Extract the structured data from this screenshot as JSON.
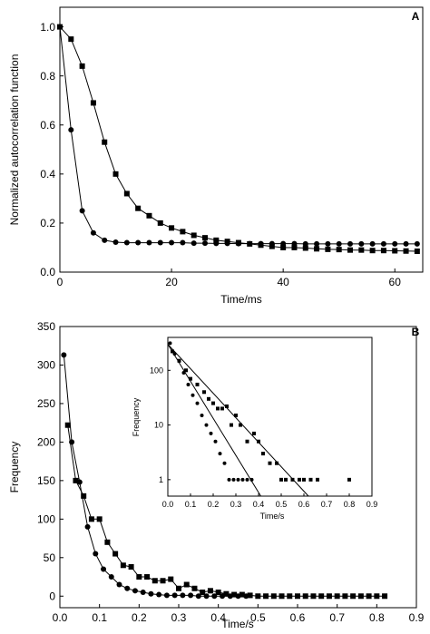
{
  "chart_data": [
    {
      "panel": "A",
      "type": "line",
      "xlabel": "Time/ms",
      "ylabel": "Normalized autocorrelation function",
      "xlim": [
        0,
        65
      ],
      "ylim": [
        0,
        1.08
      ],
      "xticks": [
        0,
        20,
        40,
        60
      ],
      "yticks": [
        0.0,
        0.2,
        0.4,
        0.6,
        0.8,
        1.0
      ],
      "xtick_labels": [
        "0",
        "20",
        "40",
        "60"
      ],
      "ytick_labels": [
        "0.0",
        "0.2",
        "0.4",
        "0.6",
        "0.8",
        "1.0"
      ],
      "grid": false,
      "series": [
        {
          "marker": "square",
          "x": [
            0,
            2,
            4,
            6,
            8,
            10,
            12,
            14,
            16,
            18,
            20,
            22,
            24,
            26,
            28,
            30,
            32,
            34,
            36,
            38,
            40,
            42,
            44,
            46,
            48,
            50,
            52,
            54,
            56,
            58,
            60,
            62,
            64
          ],
          "y": [
            1.0,
            0.95,
            0.84,
            0.69,
            0.53,
            0.4,
            0.32,
            0.26,
            0.23,
            0.2,
            0.18,
            0.165,
            0.15,
            0.14,
            0.13,
            0.125,
            0.12,
            0.115,
            0.11,
            0.105,
            0.1,
            0.1,
            0.098,
            0.095,
            0.093,
            0.092,
            0.09,
            0.09,
            0.088,
            0.088,
            0.087,
            0.086,
            0.085
          ]
        },
        {
          "marker": "circle",
          "x": [
            0,
            2,
            4,
            6,
            8,
            10,
            12,
            14,
            16,
            18,
            20,
            22,
            24,
            26,
            28,
            30,
            32,
            34,
            36,
            38,
            40,
            42,
            44,
            46,
            48,
            50,
            52,
            54,
            56,
            58,
            60,
            62,
            64
          ],
          "y": [
            1.0,
            0.58,
            0.25,
            0.16,
            0.13,
            0.122,
            0.12,
            0.12,
            0.12,
            0.12,
            0.12,
            0.12,
            0.118,
            0.118,
            0.117,
            0.117,
            0.116,
            0.116,
            0.116,
            0.116,
            0.116,
            0.116,
            0.115,
            0.115,
            0.115,
            0.115,
            0.115,
            0.115,
            0.115,
            0.115,
            0.115,
            0.115,
            0.115
          ]
        }
      ]
    },
    {
      "panel": "B",
      "type": "scatter",
      "xlabel": "Time/s",
      "ylabel": "Frequency",
      "xlim": [
        0,
        0.9
      ],
      "ylim": [
        -15,
        350
      ],
      "xticks": [
        0.0,
        0.1,
        0.2,
        0.3,
        0.4,
        0.5,
        0.6,
        0.7,
        0.8,
        0.9
      ],
      "yticks": [
        0,
        50,
        100,
        150,
        200,
        250,
        300,
        350
      ],
      "xtick_labels": [
        "0.0",
        "0.1",
        "0.2",
        "0.3",
        "0.4",
        "0.5",
        "0.6",
        "0.7",
        "0.8",
        "0.9"
      ],
      "ytick_labels": [
        "0",
        "50",
        "100",
        "150",
        "200",
        "250",
        "300",
        "350"
      ],
      "grid": false,
      "series": [
        {
          "marker": "square",
          "x": [
            0.02,
            0.04,
            0.06,
            0.08,
            0.1,
            0.12,
            0.14,
            0.16,
            0.18,
            0.2,
            0.22,
            0.24,
            0.26,
            0.28,
            0.3,
            0.32,
            0.34,
            0.36,
            0.38,
            0.4,
            0.42,
            0.44,
            0.46,
            0.48,
            0.5,
            0.52,
            0.54,
            0.56,
            0.58,
            0.6,
            0.62,
            0.64,
            0.66,
            0.68,
            0.7,
            0.72,
            0.74,
            0.76,
            0.78,
            0.8,
            0.82
          ],
          "y": [
            222,
            150,
            130,
            100,
            100,
            70,
            55,
            40,
            38,
            25,
            25,
            20,
            20,
            22,
            10,
            15,
            10,
            5,
            7,
            5,
            3,
            2,
            2,
            1,
            0,
            0,
            0,
            0,
            0,
            0,
            0,
            0,
            0,
            0,
            0,
            0,
            0,
            0,
            0,
            0,
            0
          ]
        },
        {
          "marker": "circle",
          "x": [
            0.01,
            0.03,
            0.05,
            0.07,
            0.09,
            0.11,
            0.13,
            0.15,
            0.17,
            0.19,
            0.21,
            0.23,
            0.25,
            0.27,
            0.29,
            0.31,
            0.33,
            0.35,
            0.37,
            0.39,
            0.41,
            0.43,
            0.45,
            0.47
          ],
          "y": [
            313,
            200,
            148,
            90,
            55,
            35,
            25,
            15,
            10,
            7,
            5,
            3,
            2,
            1,
            1,
            1,
            1,
            0,
            0,
            0,
            0,
            0,
            0,
            0
          ]
        }
      ],
      "inset": {
        "type": "scatter",
        "yscale": "log",
        "xlabel": "Time/s",
        "ylabel": "Frequency",
        "xlim": [
          0,
          0.9
        ],
        "ylim": [
          0.5,
          400
        ],
        "xticks": [
          0.0,
          0.1,
          0.2,
          0.3,
          0.4,
          0.5,
          0.6,
          0.7,
          0.8,
          0.9
        ],
        "xtick_labels": [
          "0.0",
          "0.1",
          "0.2",
          "0.3",
          "0.4",
          "0.5",
          "0.6",
          "0.7",
          "0.8",
          "0.9"
        ],
        "yticks": [
          1,
          10,
          100
        ],
        "ytick_labels": [
          "1",
          "10",
          "100"
        ],
        "fit_lines": [
          {
            "x": [
              0,
              0.62
            ],
            "y": [
              300,
              0.5
            ]
          },
          {
            "x": [
              0,
              0.41
            ],
            "y": [
              300,
              0.5
            ]
          }
        ],
        "series": [
          {
            "marker": "square",
            "x": [
              0.02,
              0.05,
              0.08,
              0.1,
              0.13,
              0.16,
              0.18,
              0.2,
              0.22,
              0.24,
              0.26,
              0.28,
              0.3,
              0.32,
              0.35,
              0.38,
              0.4,
              0.42,
              0.45,
              0.48,
              0.5,
              0.52,
              0.55,
              0.58,
              0.6,
              0.63,
              0.66,
              0.8
            ],
            "y": [
              222,
              150,
              100,
              70,
              55,
              40,
              30,
              25,
              20,
              20,
              22,
              10,
              15,
              10,
              5,
              7,
              5,
              3,
              2,
              2,
              1,
              1,
              1,
              1,
              1,
              1,
              1,
              1
            ]
          },
          {
            "marker": "circle",
            "x": [
              0.01,
              0.03,
              0.05,
              0.07,
              0.09,
              0.11,
              0.13,
              0.15,
              0.17,
              0.19,
              0.21,
              0.23,
              0.25,
              0.27,
              0.29,
              0.31,
              0.33,
              0.35,
              0.37
            ],
            "y": [
              313,
              200,
              148,
              90,
              55,
              35,
              25,
              15,
              10,
              7,
              5,
              3,
              2,
              1,
              1,
              1,
              1,
              1,
              1
            ]
          }
        ]
      }
    }
  ]
}
